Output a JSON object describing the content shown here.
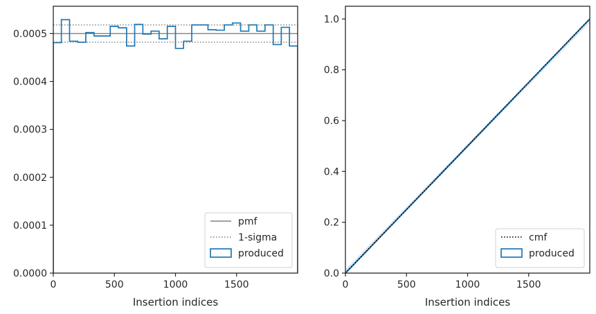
{
  "chart_data": [
    {
      "type": "step",
      "xlabel": "Insertion indices",
      "ylabel": "",
      "xlim": [
        0,
        2000
      ],
      "ylim": [
        0,
        0.000557
      ],
      "xticks": [
        0,
        500,
        1000,
        1500
      ],
      "xtick_labels": [
        "0",
        "500",
        "1000",
        "1500"
      ],
      "yticks": [
        0,
        0.0001,
        0.0002,
        0.0003,
        0.0004,
        0.0005
      ],
      "ytick_labels": [
        "0.0000",
        "0.0001",
        "0.0002",
        "0.0003",
        "0.0004",
        "0.0005"
      ],
      "grid": false,
      "legend_position": "lower-right",
      "reference_lines": [
        {
          "name": "pmf",
          "y": 0.0005,
          "style": "solid",
          "color": "#808080"
        },
        {
          "name": "1-sigma",
          "y": 0.000518,
          "style": "dotted",
          "color": "#808080"
        },
        {
          "name": "1-sigma",
          "y": 0.000482,
          "style": "dotted",
          "color": "#808080"
        }
      ],
      "series": [
        {
          "name": "produced",
          "color": "#1f77b4",
          "bin_edges": [
            0,
            66,
            133,
            200,
            266,
            333,
            400,
            466,
            533,
            600,
            666,
            733,
            800,
            866,
            933,
            1000,
            1066,
            1133,
            1200,
            1266,
            1333,
            1400,
            1466,
            1533,
            1600,
            1666,
            1733,
            1800,
            1866,
            1933,
            2000
          ],
          "values": [
            0.000481,
            0.000529,
            0.000484,
            0.000482,
            0.000502,
            0.000495,
            0.000495,
            0.000515,
            0.000512,
            0.000474,
            0.000519,
            0.000499,
            0.000505,
            0.000489,
            0.000515,
            0.000469,
            0.000484,
            0.000518,
            0.000518,
            0.000508,
            0.000507,
            0.000518,
            0.000522,
            0.000505,
            0.000518,
            0.000505,
            0.000518,
            0.000477,
            0.000513,
            0.000474
          ]
        }
      ],
      "legend": [
        "pmf",
        "1-sigma",
        "produced"
      ]
    },
    {
      "type": "line",
      "xlabel": "Insertion indices",
      "ylabel": "",
      "xlim": [
        0,
        2000
      ],
      "ylim": [
        0,
        1.05
      ],
      "xticks": [
        0,
        500,
        1000,
        1500
      ],
      "xtick_labels": [
        "0",
        "500",
        "1000",
        "1500"
      ],
      "yticks": [
        0,
        0.2,
        0.4,
        0.6,
        0.8,
        1.0
      ],
      "ytick_labels": [
        "0.0",
        "0.2",
        "0.4",
        "0.6",
        "0.8",
        "1.0"
      ],
      "grid": false,
      "legend_position": "lower-right",
      "series": [
        {
          "name": "cmf",
          "x": [
            0,
            2000
          ],
          "y": [
            0,
            1.0
          ],
          "style": "dotted",
          "color": "#000000"
        },
        {
          "name": "produced",
          "x": [
            0,
            2000
          ],
          "y": [
            0,
            1.0
          ],
          "style": "solid",
          "color": "#1f77b4"
        }
      ],
      "legend": [
        "cmf",
        "produced"
      ]
    }
  ]
}
